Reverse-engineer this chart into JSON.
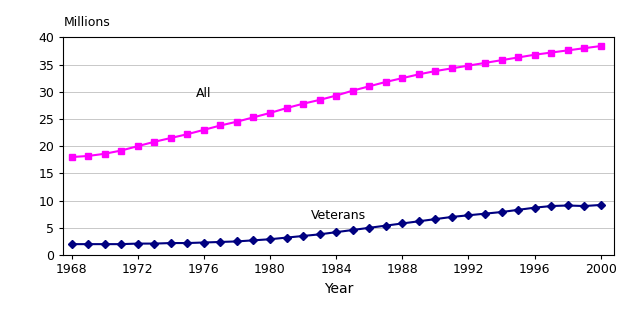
{
  "years": [
    1968,
    1969,
    1970,
    1971,
    1972,
    1973,
    1974,
    1975,
    1976,
    1977,
    1978,
    1979,
    1980,
    1981,
    1982,
    1983,
    1984,
    1985,
    1986,
    1987,
    1988,
    1989,
    1990,
    1991,
    1992,
    1993,
    1994,
    1995,
    1996,
    1997,
    1998,
    1999,
    2000
  ],
  "all_values": [
    18.0,
    18.2,
    18.6,
    19.2,
    20.0,
    20.8,
    21.5,
    22.2,
    23.0,
    23.8,
    24.5,
    25.3,
    26.1,
    27.0,
    27.8,
    28.5,
    29.3,
    30.2,
    31.0,
    31.8,
    32.5,
    33.2,
    33.8,
    34.3,
    34.8,
    35.3,
    35.8,
    36.3,
    36.8,
    37.2,
    37.6,
    38.0,
    38.4
  ],
  "vet_values": [
    2.0,
    2.0,
    2.0,
    2.0,
    2.1,
    2.1,
    2.2,
    2.2,
    2.3,
    2.4,
    2.5,
    2.7,
    2.9,
    3.2,
    3.5,
    3.8,
    4.2,
    4.6,
    5.0,
    5.4,
    5.8,
    6.2,
    6.6,
    7.0,
    7.3,
    7.6,
    7.9,
    8.3,
    8.7,
    9.0,
    9.1,
    9.0,
    9.2
  ],
  "all_color": "#FF00FF",
  "vet_color": "#000080",
  "all_label": "All",
  "vet_label": "Veterans",
  "xlabel": "Year",
  "ylabel": "Millions",
  "ylim": [
    0,
    40
  ],
  "yticks": [
    0,
    5,
    10,
    15,
    20,
    25,
    30,
    35,
    40
  ],
  "xticks": [
    1968,
    1972,
    1976,
    1980,
    1984,
    1988,
    1992,
    1996,
    2000
  ],
  "xlim": [
    1967.5,
    2000.8
  ],
  "bg_color": "#FFFFFF",
  "grid_color": "#C8C8C8",
  "all_ann_x": 1975.5,
  "all_ann_y": 28.5,
  "vet_ann_x": 1982.5,
  "vet_ann_y": 6.0
}
